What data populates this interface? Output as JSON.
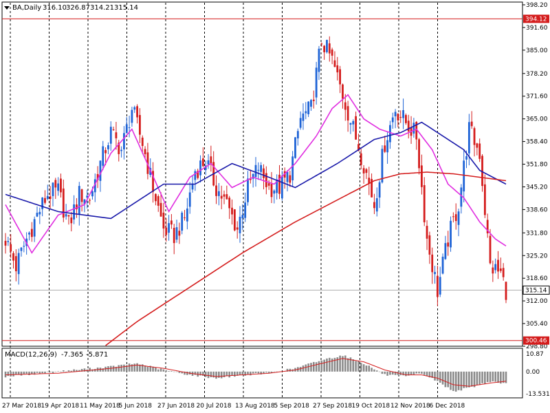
{
  "header": {
    "symbol": "BA,Daily",
    "ohlc": [
      "316.10",
      "326.87",
      "314.21",
      "315.14"
    ]
  },
  "macd": {
    "label": "MACD(12,26,9)",
    "values": [
      "-7.365",
      "-5.871"
    ],
    "ticks": [
      "10.87",
      "0.00",
      "-13.531"
    ]
  },
  "colors": {
    "up": "#1e63d6",
    "down": "#d41c1c",
    "ma_fast": "#e02ee0",
    "ma_mid": "#1a1aaa",
    "ma_slow": "#d41c1c",
    "hline": "#d41c1c",
    "grid": "#000000",
    "macd_bar": "#8a8a8a",
    "signal": "#d41c1c"
  },
  "chart_data": {
    "type": "candlestick",
    "price_axis": {
      "ylim": [
        298.8,
        398.2
      ],
      "ticks": [
        "398.20",
        "391.60",
        "385.00",
        "378.20",
        "371.60",
        "365.00",
        "358.40",
        "351.80",
        "345.20",
        "338.60",
        "331.80",
        "325.20",
        "318.60",
        "312.00",
        "305.40",
        "298.80"
      ]
    },
    "x_labels": [
      "27 Mar 2018",
      "19 Apr 2018",
      "11 May 2018",
      "5 Jun 2018",
      "27 Jun 2018",
      "20 Jul 2018",
      "13 Aug 2018",
      "5 Sep 2018",
      "27 Sep 2018",
      "19 Oct 2018",
      "12 Nov 2018",
      "6 Dec 2018"
    ],
    "horizontal_lines": [
      {
        "value": 394.12,
        "label": "394.12"
      },
      {
        "value": 300.46,
        "label": "300.46"
      }
    ],
    "last_price": {
      "value": 315.14,
      "label": "315.14"
    },
    "close_anchors": [
      [
        0,
        330
      ],
      [
        4,
        322
      ],
      [
        8,
        330
      ],
      [
        12,
        337
      ],
      [
        16,
        343
      ],
      [
        20,
        344
      ],
      [
        24,
        334
      ],
      [
        28,
        343
      ],
      [
        32,
        342
      ],
      [
        36,
        352
      ],
      [
        40,
        361
      ],
      [
        44,
        356
      ],
      [
        48,
        368
      ],
      [
        52,
        358
      ],
      [
        56,
        345
      ],
      [
        60,
        333
      ],
      [
        64,
        331
      ],
      [
        68,
        336
      ],
      [
        72,
        350
      ],
      [
        76,
        353
      ],
      [
        80,
        345
      ],
      [
        84,
        340
      ],
      [
        88,
        333
      ],
      [
        92,
        345
      ],
      [
        96,
        351
      ],
      [
        100,
        345
      ],
      [
        104,
        345
      ],
      [
        108,
        349
      ],
      [
        112,
        365
      ],
      [
        116,
        368
      ],
      [
        120,
        388
      ],
      [
        124,
        382
      ],
      [
        128,
        372
      ],
      [
        132,
        362
      ],
      [
        136,
        352
      ],
      [
        140,
        340
      ],
      [
        144,
        358
      ],
      [
        148,
        368
      ],
      [
        152,
        364
      ],
      [
        156,
        360
      ],
      [
        160,
        330
      ],
      [
        164,
        315
      ],
      [
        168,
        330
      ],
      [
        172,
        340
      ],
      [
        176,
        362
      ],
      [
        180,
        355
      ],
      [
        184,
        322
      ],
      [
        188,
        320
      ],
      [
        190,
        315.14
      ]
    ],
    "series": [
      {
        "name": "MA fast",
        "values": [
          [
            0,
            340
          ],
          [
            10,
            326
          ],
          [
            20,
            337
          ],
          [
            30,
            340
          ],
          [
            40,
            355
          ],
          [
            48,
            362
          ],
          [
            55,
            350
          ],
          [
            62,
            338
          ],
          [
            70,
            348
          ],
          [
            78,
            352
          ],
          [
            86,
            345
          ],
          [
            94,
            348
          ],
          [
            102,
            346
          ],
          [
            110,
            352
          ],
          [
            118,
            360
          ],
          [
            124,
            368
          ],
          [
            130,
            372
          ],
          [
            136,
            365
          ],
          [
            142,
            362
          ],
          [
            150,
            360
          ],
          [
            156,
            362
          ],
          [
            162,
            356
          ],
          [
            168,
            346
          ],
          [
            174,
            342
          ],
          [
            180,
            335
          ],
          [
            186,
            330
          ],
          [
            190,
            328
          ]
        ]
      },
      {
        "name": "MA mid",
        "values": [
          [
            0,
            343
          ],
          [
            20,
            338
          ],
          [
            40,
            336
          ],
          [
            60,
            346
          ],
          [
            72,
            346
          ],
          [
            86,
            352
          ],
          [
            100,
            348
          ],
          [
            110,
            345
          ],
          [
            126,
            352
          ],
          [
            140,
            359
          ],
          [
            150,
            361
          ],
          [
            158,
            364
          ],
          [
            166,
            360
          ],
          [
            174,
            356
          ],
          [
            180,
            350
          ],
          [
            190,
            346
          ]
        ]
      },
      {
        "name": "MA slow",
        "values": [
          [
            38,
            299
          ],
          [
            50,
            306
          ],
          [
            70,
            316
          ],
          [
            90,
            326
          ],
          [
            110,
            335
          ],
          [
            130,
            343
          ],
          [
            140,
            347
          ],
          [
            150,
            349
          ],
          [
            160,
            349.5
          ],
          [
            170,
            349
          ],
          [
            180,
            348
          ],
          [
            190,
            347
          ]
        ]
      }
    ],
    "macd": {
      "ylim": [
        -13.531,
        10.87
      ],
      "hist_anchors": [
        [
          0,
          -3
        ],
        [
          20,
          0
        ],
        [
          40,
          3
        ],
        [
          50,
          5
        ],
        [
          60,
          1
        ],
        [
          70,
          -2
        ],
        [
          80,
          -4
        ],
        [
          90,
          -2
        ],
        [
          100,
          -1
        ],
        [
          110,
          2
        ],
        [
          120,
          7
        ],
        [
          128,
          10
        ],
        [
          136,
          5
        ],
        [
          144,
          -2
        ],
        [
          152,
          -3
        ],
        [
          158,
          -1
        ],
        [
          164,
          -6
        ],
        [
          170,
          -12
        ],
        [
          176,
          -10
        ],
        [
          184,
          -6
        ],
        [
          190,
          -7.365
        ]
      ],
      "signal_anchors": [
        [
          0,
          -2
        ],
        [
          20,
          -1
        ],
        [
          40,
          2
        ],
        [
          50,
          4
        ],
        [
          60,
          2
        ],
        [
          70,
          -1
        ],
        [
          80,
          -3
        ],
        [
          90,
          -2
        ],
        [
          100,
          -1
        ],
        [
          110,
          1
        ],
        [
          120,
          5
        ],
        [
          128,
          8
        ],
        [
          136,
          6
        ],
        [
          144,
          1
        ],
        [
          152,
          -2
        ],
        [
          158,
          -2
        ],
        [
          164,
          -4
        ],
        [
          170,
          -8
        ],
        [
          176,
          -9
        ],
        [
          184,
          -7
        ],
        [
          190,
          -5.871
        ]
      ]
    }
  }
}
